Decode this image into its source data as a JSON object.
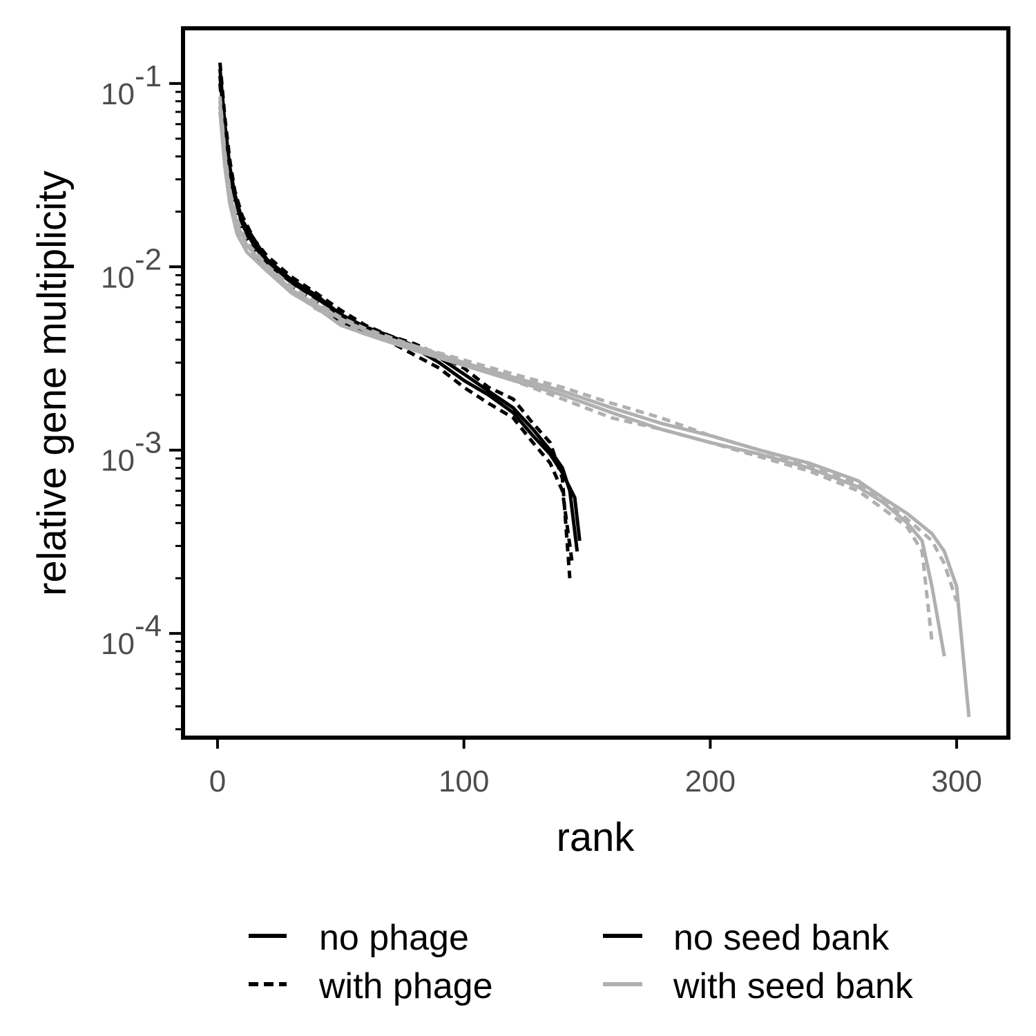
{
  "chart_data": {
    "type": "line",
    "xlabel": "rank",
    "ylabel": "relative gene multiplicity",
    "yscale": "log10",
    "xlim": [
      -14,
      321
    ],
    "ylim": [
      2.7e-05,
      0.2
    ],
    "x_ticks": [
      0,
      100,
      200,
      300
    ],
    "y_ticks": [
      {
        "value": 0.1,
        "base": "10",
        "exp": "-1"
      },
      {
        "value": 0.01,
        "base": "10",
        "exp": "-2"
      },
      {
        "value": 0.001,
        "base": "10",
        "exp": "-3"
      },
      {
        "value": 0.0001,
        "base": "10",
        "exp": "-4"
      }
    ],
    "grid": false,
    "legend_position": "bottom",
    "legend": {
      "linetype": [
        {
          "label": "no phage",
          "style": "solid"
        },
        {
          "label": "with phage",
          "style": "dashed"
        }
      ],
      "color": [
        {
          "label": "no seed bank",
          "color": "#000000"
        },
        {
          "label": "with seed bank",
          "color": "#b0b0b0"
        }
      ]
    },
    "series": [
      {
        "phage": "no phage",
        "seed_bank": "no seed bank",
        "color": "#000000",
        "dash": false,
        "x": [
          1,
          3,
          5,
          7,
          10,
          15,
          20,
          30,
          40,
          50,
          60,
          70,
          80,
          90,
          100,
          110,
          120,
          128,
          135,
          140,
          143,
          146
        ],
        "y": [
          0.12,
          0.06,
          0.035,
          0.025,
          0.018,
          0.014,
          0.011,
          0.0085,
          0.007,
          0.0055,
          0.0047,
          0.0042,
          0.0037,
          0.0032,
          0.0026,
          0.0021,
          0.0017,
          0.0013,
          0.001,
          0.0008,
          0.0006,
          0.00028
        ]
      },
      {
        "phage": "no phage",
        "seed_bank": "no seed bank",
        "color": "#000000",
        "dash": false,
        "x": [
          1,
          3,
          5,
          7,
          10,
          15,
          20,
          30,
          40,
          50,
          60,
          70,
          80,
          90,
          100,
          110,
          120,
          128,
          135,
          140,
          145,
          147
        ],
        "y": [
          0.11,
          0.055,
          0.032,
          0.024,
          0.017,
          0.013,
          0.0105,
          0.0082,
          0.0068,
          0.0054,
          0.0046,
          0.0041,
          0.0036,
          0.003,
          0.0024,
          0.002,
          0.0016,
          0.0012,
          0.00095,
          0.00075,
          0.00055,
          0.00032
        ]
      },
      {
        "phage": "with phage",
        "seed_bank": "no seed bank",
        "color": "#000000",
        "dash": true,
        "x": [
          1,
          3,
          5,
          7,
          10,
          15,
          20,
          30,
          40,
          50,
          60,
          70,
          80,
          90,
          100,
          110,
          120,
          128,
          135,
          140,
          143
        ],
        "y": [
          0.13,
          0.065,
          0.038,
          0.026,
          0.019,
          0.014,
          0.0115,
          0.0088,
          0.0072,
          0.0058,
          0.0048,
          0.0042,
          0.0038,
          0.0033,
          0.0028,
          0.0022,
          0.0019,
          0.0014,
          0.0011,
          0.0007,
          0.0002
        ]
      },
      {
        "phage": "with phage",
        "seed_bank": "no seed bank",
        "color": "#000000",
        "dash": true,
        "x": [
          1,
          3,
          5,
          7,
          10,
          15,
          20,
          30,
          40,
          50,
          60,
          70,
          80,
          90,
          100,
          110,
          120,
          128,
          135,
          140,
          144
        ],
        "y": [
          0.1,
          0.05,
          0.03,
          0.022,
          0.016,
          0.012,
          0.0095,
          0.0078,
          0.0065,
          0.005,
          0.0044,
          0.0039,
          0.0033,
          0.0028,
          0.0022,
          0.0018,
          0.0015,
          0.0011,
          0.00085,
          0.0006,
          0.00024
        ]
      },
      {
        "phage": "no phage",
        "seed_bank": "with seed bank",
        "color": "#b0b0b0",
        "dash": false,
        "x": [
          1,
          3,
          5,
          8,
          12,
          20,
          30,
          40,
          50,
          60,
          80,
          100,
          120,
          140,
          160,
          180,
          200,
          220,
          240,
          260,
          270,
          280,
          290,
          295,
          300,
          305
        ],
        "y": [
          0.08,
          0.04,
          0.025,
          0.017,
          0.013,
          0.01,
          0.0075,
          0.0062,
          0.0052,
          0.0045,
          0.0036,
          0.003,
          0.0025,
          0.0021,
          0.0017,
          0.0014,
          0.0012,
          0.001,
          0.00085,
          0.00068,
          0.00055,
          0.00045,
          0.00035,
          0.00028,
          0.00018,
          3.5e-05
        ]
      },
      {
        "phage": "no phage",
        "seed_bank": "with seed bank",
        "color": "#b0b0b0",
        "dash": false,
        "x": [
          1,
          3,
          5,
          8,
          12,
          20,
          30,
          40,
          50,
          60,
          80,
          100,
          120,
          140,
          160,
          180,
          200,
          220,
          240,
          260,
          270,
          280,
          286,
          290,
          295
        ],
        "y": [
          0.07,
          0.035,
          0.022,
          0.015,
          0.012,
          0.0095,
          0.0072,
          0.006,
          0.0048,
          0.0043,
          0.0035,
          0.0029,
          0.0024,
          0.002,
          0.0016,
          0.0013,
          0.0011,
          0.00095,
          0.0008,
          0.00063,
          0.00052,
          0.0004,
          0.00032,
          0.00018,
          7.5e-05
        ]
      },
      {
        "phage": "with phage",
        "seed_bank": "with seed bank",
        "color": "#b0b0b0",
        "dash": true,
        "x": [
          1,
          3,
          5,
          8,
          12,
          20,
          30,
          40,
          50,
          60,
          80,
          100,
          120,
          140,
          160,
          180,
          200,
          220,
          240,
          260,
          270,
          280,
          286,
          290
        ],
        "y": [
          0.075,
          0.038,
          0.023,
          0.016,
          0.0125,
          0.0098,
          0.0074,
          0.0059,
          0.005,
          0.0044,
          0.0037,
          0.003,
          0.0024,
          0.0019,
          0.0015,
          0.0013,
          0.0011,
          0.00092,
          0.00077,
          0.0006,
          0.00048,
          0.00038,
          0.00028,
          9e-05
        ]
      },
      {
        "phage": "with phage",
        "seed_bank": "with seed bank",
        "color": "#b0b0b0",
        "dash": true,
        "x": [
          1,
          3,
          5,
          8,
          12,
          20,
          30,
          40,
          50,
          60,
          80,
          100,
          120,
          140,
          160,
          180,
          200,
          220,
          240,
          260,
          270,
          280,
          290,
          295,
          300
        ],
        "y": [
          0.085,
          0.042,
          0.026,
          0.018,
          0.0135,
          0.0102,
          0.0078,
          0.0064,
          0.0053,
          0.0046,
          0.0037,
          0.0031,
          0.0026,
          0.0022,
          0.0018,
          0.0015,
          0.0012,
          0.001,
          0.00083,
          0.00065,
          0.00053,
          0.00042,
          0.00032,
          0.00024,
          0.00015
        ]
      }
    ]
  }
}
